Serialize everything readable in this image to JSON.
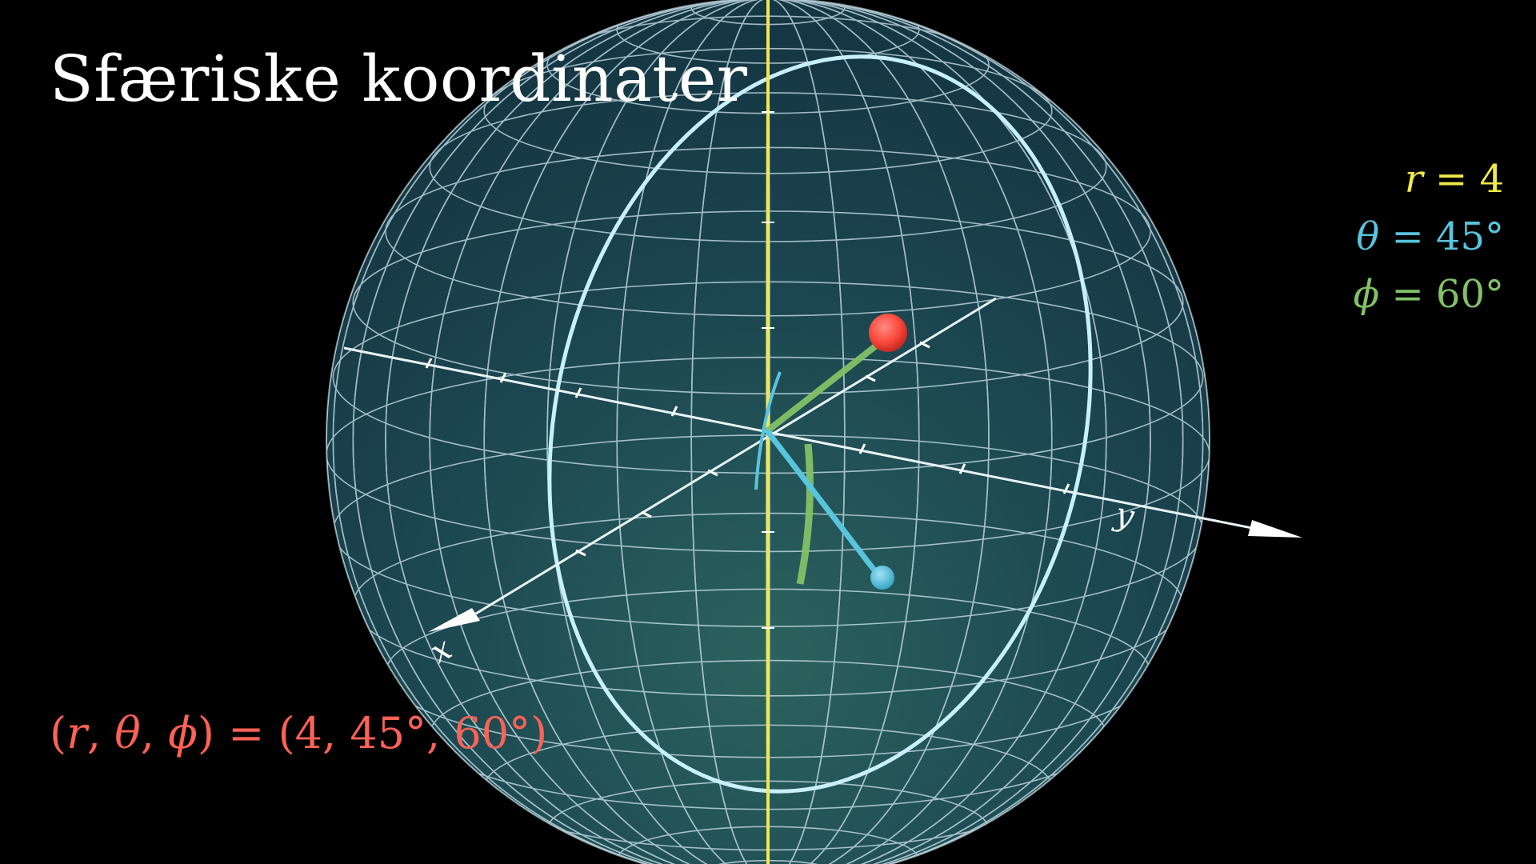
{
  "title": "Sfæriske koordinater",
  "parameters": {
    "r": {
      "symbol": "r",
      "value": "4",
      "color": "#f0e94a"
    },
    "theta": {
      "symbol": "θ",
      "value": "45°",
      "color": "#58c4dd"
    },
    "phi": {
      "symbol": "ϕ",
      "value": "60°",
      "color": "#83c167"
    }
  },
  "coordinate_tuple": {
    "lhs_open": "(",
    "lhs_r": "r",
    "lhs_theta": "θ",
    "lhs_phi": "ϕ",
    "lhs_close": ")",
    "rhs": "(4, 45°, 60°)",
    "color": "#fc6255"
  },
  "axes": {
    "x_label": "x",
    "y_label": "y"
  },
  "colors": {
    "background": "#000000",
    "sphere_fill": "#1d4a56",
    "grid_line": "#cfe6ef",
    "meridian_ring": "#c8f0fb",
    "point": "#fc6255",
    "projection": "#58c4dd",
    "z_axis": "#f0e94a",
    "arc_phi": "#83c167"
  },
  "icons": {
    "point_marker": "red-sphere-icon",
    "projection_marker": "blue-dot-icon"
  }
}
